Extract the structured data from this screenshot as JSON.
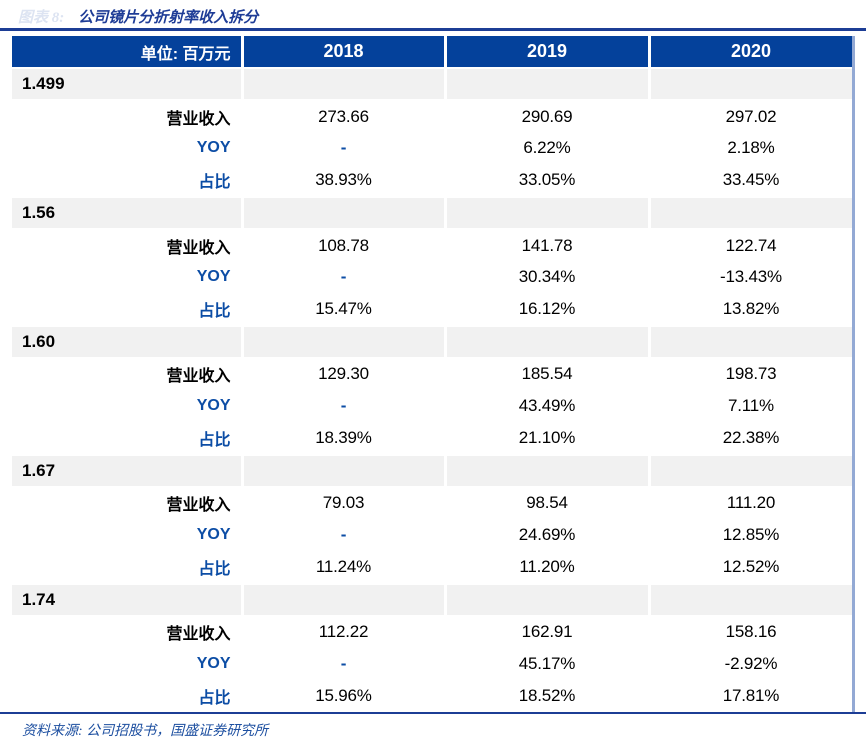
{
  "title": {
    "figure_label": "图表 8:",
    "text": "公司镜片分折射率收入拆分"
  },
  "header": {
    "unit_label": "单位: 百万元",
    "years": [
      "2018",
      "2019",
      "2020"
    ]
  },
  "chart_data": {
    "type": "table",
    "title": "公司镜片分折射率收入拆分",
    "unit": "百万元",
    "columns": [
      "2018",
      "2019",
      "2020"
    ],
    "row_groups": [
      {
        "group": "1.499",
        "rows": [
          {
            "label": "营业收入",
            "label_style": "black",
            "values": [
              "273.66",
              "290.69",
              "297.02"
            ]
          },
          {
            "label": "YOY",
            "label_style": "blue",
            "values": [
              "-",
              "6.22%",
              "2.18%"
            ]
          },
          {
            "label": "占比",
            "label_style": "blue",
            "values": [
              "38.93%",
              "33.05%",
              "33.45%"
            ]
          }
        ]
      },
      {
        "group": "1.56",
        "rows": [
          {
            "label": "营业收入",
            "label_style": "black",
            "values": [
              "108.78",
              "141.78",
              "122.74"
            ]
          },
          {
            "label": "YOY",
            "label_style": "blue",
            "values": [
              "-",
              "30.34%",
              "-13.43%"
            ]
          },
          {
            "label": "占比",
            "label_style": "blue",
            "values": [
              "15.47%",
              "16.12%",
              "13.82%"
            ]
          }
        ]
      },
      {
        "group": "1.60",
        "rows": [
          {
            "label": "营业收入",
            "label_style": "black",
            "values": [
              "129.30",
              "185.54",
              "198.73"
            ]
          },
          {
            "label": "YOY",
            "label_style": "blue",
            "values": [
              "-",
              "43.49%",
              "7.11%"
            ]
          },
          {
            "label": "占比",
            "label_style": "blue",
            "values": [
              "18.39%",
              "21.10%",
              "22.38%"
            ]
          }
        ]
      },
      {
        "group": "1.67",
        "rows": [
          {
            "label": "营业收入",
            "label_style": "black",
            "values": [
              "79.03",
              "98.54",
              "111.20"
            ]
          },
          {
            "label": "YOY",
            "label_style": "blue",
            "values": [
              "-",
              "24.69%",
              "12.85%"
            ]
          },
          {
            "label": "占比",
            "label_style": "blue",
            "values": [
              "11.24%",
              "11.20%",
              "12.52%"
            ]
          }
        ]
      },
      {
        "group": "1.74",
        "rows": [
          {
            "label": "营业收入",
            "label_style": "black",
            "values": [
              "112.22",
              "162.91",
              "158.16"
            ]
          },
          {
            "label": "YOY",
            "label_style": "blue",
            "values": [
              "-",
              "45.17%",
              "-2.92%"
            ]
          },
          {
            "label": "占比",
            "label_style": "blue",
            "values": [
              "15.96%",
              "18.52%",
              "17.81%"
            ]
          }
        ]
      }
    ]
  },
  "footer": {
    "source": "资料来源: 公司招股书，国盛证券研究所"
  },
  "colors": {
    "header_bg": "#04419b",
    "rule_blue": "#1c3d95",
    "text_blue": "#0c4da5",
    "title_blue": "#1e3c96",
    "section_bg": "#f1f1f1",
    "faint_label": "#dde4f2",
    "table_right_border": "#93a9d4"
  }
}
